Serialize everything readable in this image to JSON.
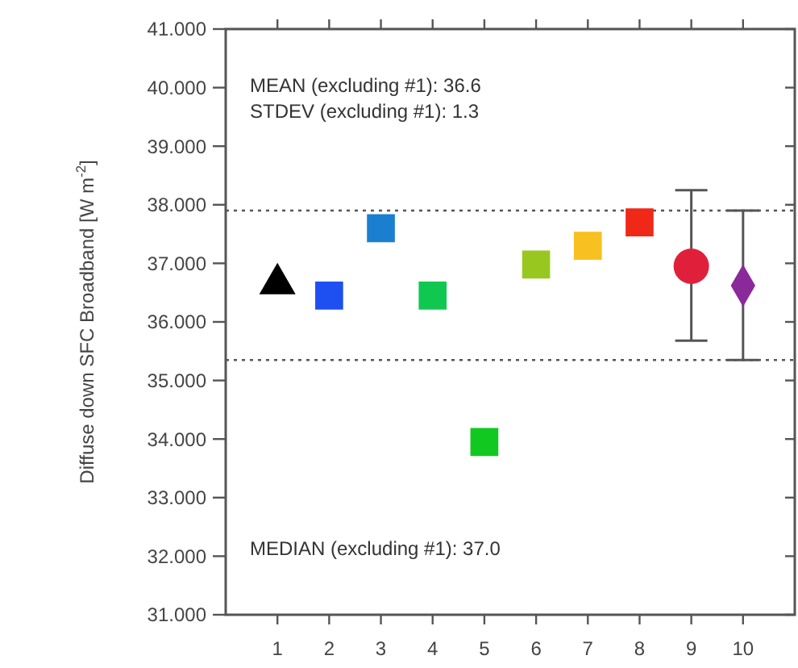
{
  "chart_data": {
    "type": "scatter",
    "ylabel": "Diffuse down SFC Broadband [W m$^{-2}$]",
    "xlim": [
      0,
      11
    ],
    "xticks": [
      1,
      2,
      3,
      4,
      5,
      6,
      7,
      8,
      9,
      10
    ],
    "ylim": [
      31,
      41
    ],
    "yticks": [
      {
        "value": 31,
        "label": "31.000"
      },
      {
        "value": 32,
        "label": "32.000"
      },
      {
        "value": 33,
        "label": "33.000"
      },
      {
        "value": 34,
        "label": "34.000"
      },
      {
        "value": 35,
        "label": "35.000"
      },
      {
        "value": 36,
        "label": "36.000"
      },
      {
        "value": 37,
        "label": "37.000"
      },
      {
        "value": 38,
        "label": "38.000"
      },
      {
        "value": 39,
        "label": "39.000"
      },
      {
        "value": 40,
        "label": "40.000"
      },
      {
        "value": 41,
        "label": "41.000"
      }
    ],
    "grid": false,
    "series": [
      {
        "marker": "triangle",
        "x": [
          1
        ],
        "values": [
          36.65
        ],
        "colors": [
          "#000000"
        ]
      },
      {
        "marker": "square",
        "x": [
          2,
          3,
          4,
          5,
          6,
          7,
          8
        ],
        "values": [
          36.45,
          37.6,
          36.45,
          33.95,
          36.98,
          37.3,
          37.7
        ],
        "colors": [
          "#1e4ff0",
          "#1a7fd0",
          "#10c850",
          "#10c820",
          "#98c820",
          "#f8c020",
          "#f02818"
        ]
      },
      {
        "marker": "circle",
        "x": [
          9
        ],
        "values": [
          36.95
        ],
        "colors": [
          "#e0203a"
        ],
        "errors": [
          [
            35.68,
            38.25
          ]
        ]
      },
      {
        "marker": "diamond",
        "x": [
          10
        ],
        "values": [
          36.62
        ],
        "colors": [
          "#8a2a9a"
        ],
        "errors": [
          [
            35.35,
            37.9
          ]
        ]
      }
    ],
    "ref_lines": [
      {
        "axis": "y",
        "value": 37.9,
        "line_style": "dotted",
        "color": "#555555"
      },
      {
        "axis": "y",
        "value": 35.35,
        "line_style": "dotted",
        "color": "#555555"
      }
    ],
    "annotations": [
      "MEAN (excluding #1): 36.6",
      "STDEV (excluding #1): 1.3",
      "MEDIAN (excluding #1): 37.0"
    ]
  }
}
